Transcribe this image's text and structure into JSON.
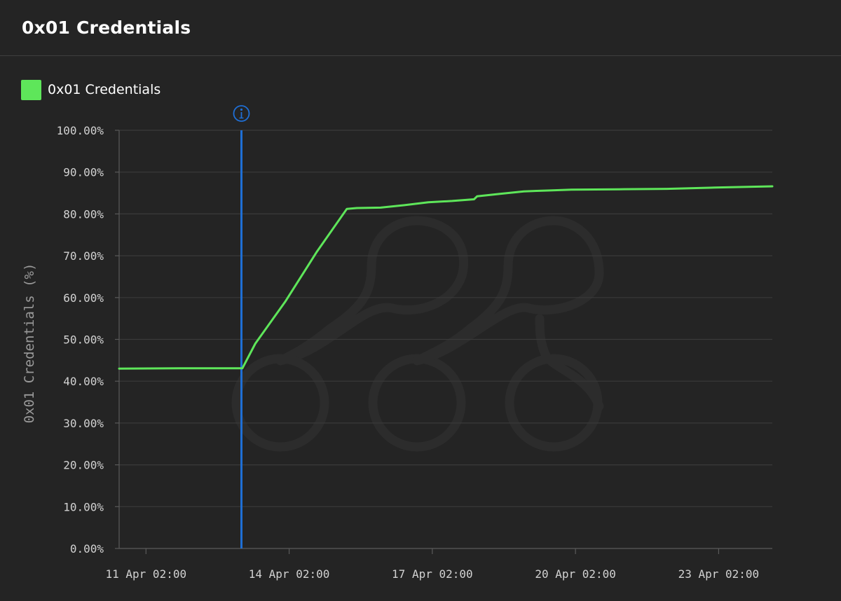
{
  "panel": {
    "title": "0x01 Credentials"
  },
  "colors": {
    "background": "#242424",
    "series": "#5ee65a",
    "annotation": "#1f6fd6",
    "grid": "#3a3a3a",
    "axis": "#5a5a5a",
    "watermark": "#2c2c2c"
  },
  "icons": {
    "annotation_marker": "info-circle-icon",
    "watermark": "logo-watermark"
  },
  "chart_data": {
    "type": "line",
    "title": "",
    "ylabel": "0x01 Credentials (%)",
    "xlabel": "",
    "x_unit": "days",
    "x_range": [
      "2025-04-10T12:30",
      "2025-04-24T05:00"
    ],
    "ylim": [
      0,
      100
    ],
    "y_ticks": [
      0,
      10,
      20,
      30,
      40,
      50,
      60,
      70,
      80,
      90,
      100
    ],
    "y_tick_labels": [
      "0.00%",
      "10.00%",
      "20.00%",
      "30.00%",
      "40.00%",
      "50.00%",
      "60.00%",
      "70.00%",
      "80.00%",
      "90.00%",
      "100.00%"
    ],
    "x_ticks": [
      "2025-04-11T02:00",
      "2025-04-14T02:00",
      "2025-04-17T02:00",
      "2025-04-20T02:00",
      "2025-04-23T02:00"
    ],
    "x_tick_labels": [
      "11 Apr 02:00",
      "14 Apr 02:00",
      "17 Apr 02:00",
      "20 Apr 02:00",
      "23 Apr 02:00"
    ],
    "grid": true,
    "legend": "top-left",
    "annotations": [
      {
        "type": "vertical-line",
        "x": "2025-04-13T02:00",
        "icon": "info-circle-icon"
      }
    ],
    "series": [
      {
        "name": "0x01 Credentials",
        "points": [
          [
            "2025-04-10T12:30",
            43.0
          ],
          [
            "2025-04-12T00:00",
            43.1
          ],
          [
            "2025-04-13T02:30",
            43.1
          ],
          [
            "2025-04-13T09:00",
            49.0
          ],
          [
            "2025-04-14T00:00",
            59.0
          ],
          [
            "2025-04-14T16:00",
            71.0
          ],
          [
            "2025-04-15T07:00",
            81.2
          ],
          [
            "2025-04-15T12:00",
            81.4
          ],
          [
            "2025-04-16T00:00",
            81.5
          ],
          [
            "2025-04-16T12:00",
            82.1
          ],
          [
            "2025-04-17T00:00",
            82.8
          ],
          [
            "2025-04-17T12:00",
            83.1
          ],
          [
            "2025-04-17T23:00",
            83.5
          ],
          [
            "2025-04-18T00:30",
            84.2
          ],
          [
            "2025-04-18T12:00",
            84.8
          ],
          [
            "2025-04-19T00:00",
            85.4
          ],
          [
            "2025-04-19T12:00",
            85.6
          ],
          [
            "2025-04-20T00:00",
            85.8
          ],
          [
            "2025-04-21T00:00",
            85.9
          ],
          [
            "2025-04-22T00:00",
            86.0
          ],
          [
            "2025-04-23T00:00",
            86.3
          ],
          [
            "2025-04-24T05:00",
            86.6
          ]
        ]
      }
    ]
  }
}
